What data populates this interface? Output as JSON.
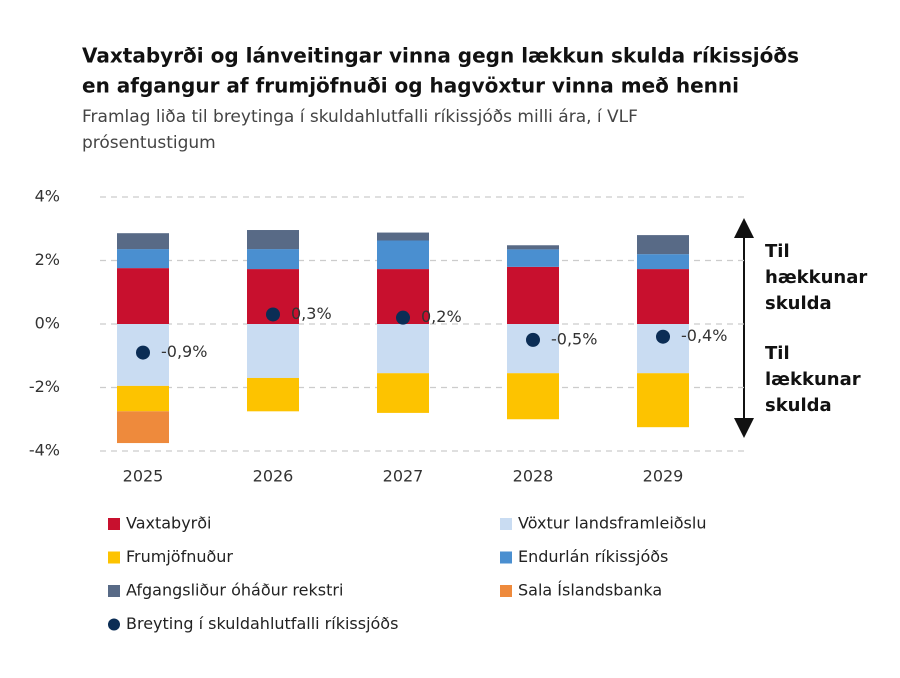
{
  "chart_data": {
    "type": "bar",
    "title": [
      "Vaxtabyrði og lánveitingar vinna gegn lækkun skulda ríkissjóðs",
      "en afgangur af frumjöfnuði og hagvöxtur vinna með henni"
    ],
    "subtitle": [
      "Framlag liða til breytinga í skuldahlutfalli ríkissjóðs milli ára, í VLF",
      "prósentustigum"
    ],
    "categories": [
      "2025",
      "2026",
      "2027",
      "2028",
      "2029"
    ],
    "stacked": true,
    "series": [
      {
        "name": "Vaxtabyrði",
        "type": "bar",
        "color": "#c8102e",
        "values": [
          1.76,
          1.73,
          1.73,
          1.8,
          1.73
        ]
      },
      {
        "name": "Vöxtur landsframleiðslu",
        "type": "bar",
        "color": "#c9dcf2",
        "values": [
          -1.95,
          -1.7,
          -1.55,
          -1.55,
          -1.55
        ]
      },
      {
        "name": "Frumjöfnuður",
        "type": "bar",
        "color": "#fdc300",
        "values": [
          -0.8,
          -1.05,
          -1.25,
          -1.45,
          -1.7
        ]
      },
      {
        "name": "Endurlán ríkissjóðs",
        "type": "bar",
        "color": "#4a8fd0",
        "values": [
          0.6,
          0.63,
          0.9,
          0.55,
          0.47
        ]
      },
      {
        "name": "Afgangsliður óháður rekstri",
        "type": "bar",
        "color": "#586a86",
        "values": [
          0.5,
          0.6,
          0.25,
          0.13,
          0.6
        ]
      },
      {
        "name": "Sala Íslandsbanka",
        "type": "bar",
        "color": "#ee8a3c",
        "values": [
          -1.0,
          null,
          null,
          null,
          null
        ]
      },
      {
        "name": "Breyting í skuldahlutfalli ríkissjóðs",
        "type": "dot",
        "color": "#0b2d55",
        "values": [
          -0.9,
          0.3,
          0.2,
          -0.5,
          -0.4
        ],
        "value_labels": [
          "-0,9%",
          "0,3%",
          "0,2%",
          "-0,5%",
          "-0,4%"
        ]
      }
    ],
    "ylim": [
      -4.3,
      4.3
    ],
    "yticks": [
      {
        "value": -4,
        "label": "-4%"
      },
      {
        "value": -2,
        "label": "-2%"
      },
      {
        "value": 0,
        "label": "0%"
      },
      {
        "value": 2,
        "label": "2%"
      },
      {
        "value": 4,
        "label": "4%"
      }
    ],
    "grid": true,
    "annotations": [
      [
        "Til",
        "hækkunar",
        "skulda"
      ],
      [
        "Til",
        "lækkunar",
        "skulda"
      ]
    ]
  }
}
